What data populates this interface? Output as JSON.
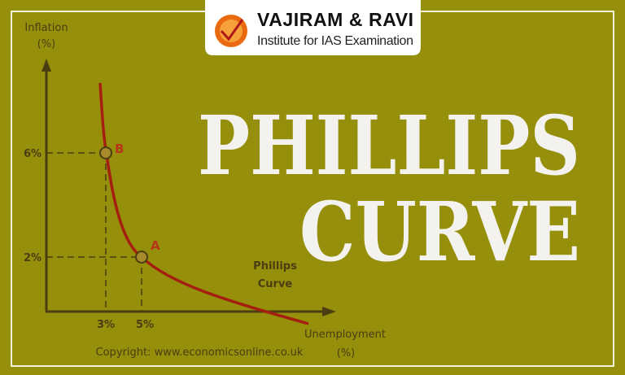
{
  "logo": {
    "name": "VAJIRAM & RAVI",
    "tagline": "Institute for IAS Examination",
    "emblem_text": "VAJIRAM & RAVI"
  },
  "title": {
    "line1": "PHILLIPS",
    "line2": "CURVE"
  },
  "colors": {
    "background": "#958f0b",
    "curve": "#a51f10",
    "axis": "#4a3d12",
    "title": "#f4f2ee",
    "point_label": "#b5361a"
  },
  "diagram": {
    "y_axis_label": [
      "Inflation",
      "(%)"
    ],
    "x_axis_label": [
      "Unemployment",
      "(%)"
    ],
    "y_ticks": [
      "6%",
      "2%"
    ],
    "x_ticks": [
      "3%",
      "5%"
    ],
    "points": [
      {
        "label": "B",
        "unemployment": 3,
        "inflation": 6
      },
      {
        "label": "A",
        "unemployment": 5,
        "inflation": 2
      }
    ],
    "curve_label": [
      "Phillips",
      "Curve"
    ],
    "copyright": "Copyright: www.economicsonline.co.uk"
  }
}
